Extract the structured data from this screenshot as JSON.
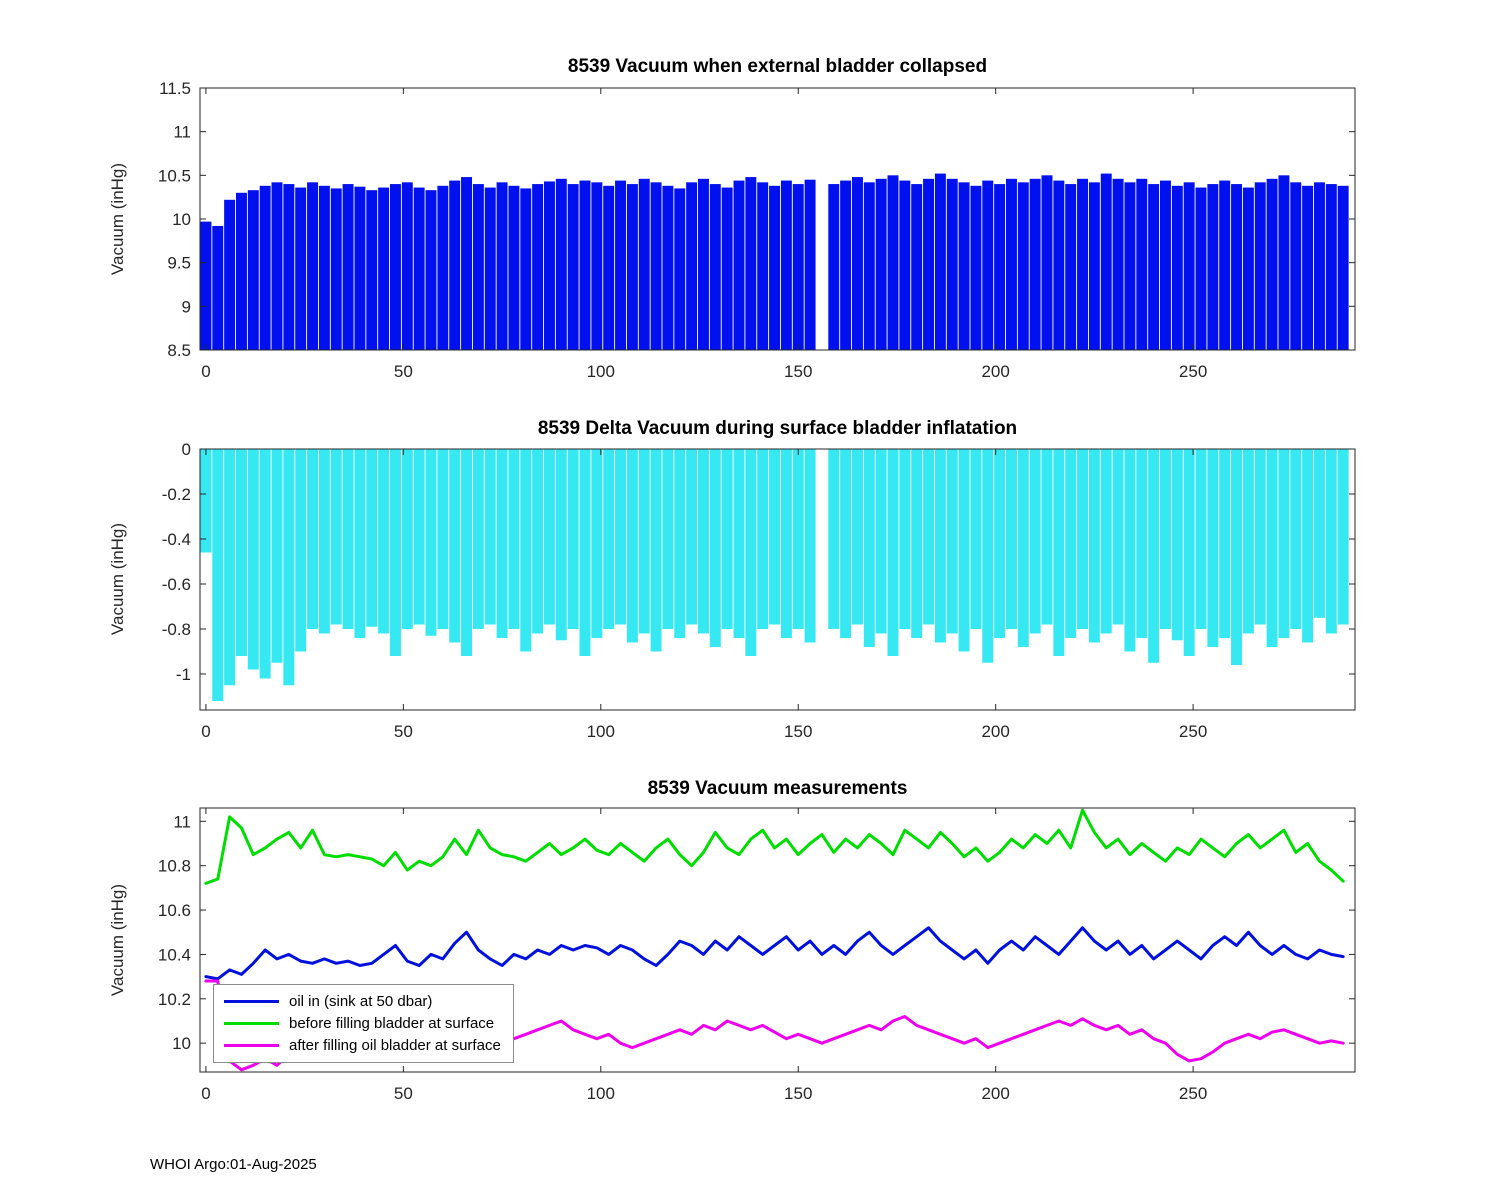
{
  "footer": {
    "text": "WHOI Argo:01-Aug-2025"
  },
  "legend_position": "bottom-left",
  "chart_data": [
    {
      "type": "bar",
      "title": "8539 Vacuum when external bladder collapsed",
      "xlabel": "",
      "ylabel": "Vacuum (inHg)",
      "color": "#0010ee",
      "baseline": 8.5,
      "xlim": [
        -1.5,
        291
      ],
      "ylim": [
        8.5,
        11.5
      ],
      "xticks": [
        0,
        50,
        100,
        150,
        200,
        250
      ],
      "yticks": [
        8.5,
        9,
        9.5,
        10,
        10.5,
        11,
        11.5
      ],
      "grid": false,
      "x_start": 0,
      "x_step": 3,
      "values": [
        9.97,
        9.92,
        10.22,
        10.3,
        10.33,
        10.38,
        10.42,
        10.4,
        10.36,
        10.42,
        10.38,
        10.35,
        10.4,
        10.37,
        10.33,
        10.36,
        10.4,
        10.42,
        10.36,
        10.33,
        10.38,
        10.44,
        10.48,
        10.4,
        10.36,
        10.42,
        10.38,
        10.35,
        10.4,
        10.43,
        10.46,
        10.4,
        10.44,
        10.42,
        10.38,
        10.44,
        10.4,
        10.46,
        10.42,
        10.38,
        10.35,
        10.42,
        10.46,
        10.4,
        10.36,
        10.44,
        10.48,
        10.42,
        10.38,
        10.44,
        10.4,
        10.45,
        null,
        10.4,
        10.44,
        10.48,
        10.42,
        10.46,
        10.5,
        10.44,
        10.4,
        10.46,
        10.52,
        10.46,
        10.42,
        10.38,
        10.44,
        10.4,
        10.46,
        10.42,
        10.46,
        10.5,
        10.44,
        10.4,
        10.46,
        10.42,
        10.52,
        10.46,
        10.42,
        10.46,
        10.4,
        10.44,
        10.38,
        10.42,
        10.36,
        10.4,
        10.44,
        10.4,
        10.36,
        10.42,
        10.46,
        10.5,
        10.42,
        10.38,
        10.42,
        10.4,
        10.38
      ]
    },
    {
      "type": "bar",
      "title": "8539 Delta Vacuum during surface bladder inflatation",
      "xlabel": "",
      "ylabel": "Vacuum (inHg)",
      "color": "#35e8f2",
      "baseline": 0,
      "xlim": [
        -1.5,
        291
      ],
      "ylim": [
        -1.16,
        0
      ],
      "xticks": [
        0,
        50,
        100,
        150,
        200,
        250
      ],
      "yticks": [
        0,
        -0.2,
        -0.4,
        -0.6,
        -0.8,
        -1
      ],
      "grid": false,
      "x_start": 0,
      "x_step": 3,
      "values": [
        -0.46,
        -1.12,
        -1.05,
        -0.92,
        -0.98,
        -1.02,
        -0.95,
        -1.05,
        -0.9,
        -0.8,
        -0.82,
        -0.78,
        -0.8,
        -0.84,
        -0.79,
        -0.82,
        -0.92,
        -0.8,
        -0.78,
        -0.83,
        -0.8,
        -0.86,
        -0.92,
        -0.8,
        -0.78,
        -0.84,
        -0.8,
        -0.9,
        -0.82,
        -0.78,
        -0.85,
        -0.8,
        -0.92,
        -0.84,
        -0.8,
        -0.78,
        -0.86,
        -0.82,
        -0.9,
        -0.8,
        -0.84,
        -0.78,
        -0.82,
        -0.88,
        -0.8,
        -0.84,
        -0.92,
        -0.8,
        -0.78,
        -0.84,
        -0.8,
        -0.86,
        null,
        -0.8,
        -0.84,
        -0.78,
        -0.88,
        -0.82,
        -0.92,
        -0.8,
        -0.84,
        -0.78,
        -0.86,
        -0.82,
        -0.9,
        -0.8,
        -0.95,
        -0.84,
        -0.8,
        -0.88,
        -0.82,
        -0.78,
        -0.92,
        -0.84,
        -0.8,
        -0.86,
        -0.82,
        -0.78,
        -0.9,
        -0.84,
        -0.95,
        -0.8,
        -0.85,
        -0.92,
        -0.8,
        -0.88,
        -0.84,
        -0.96,
        -0.82,
        -0.78,
        -0.88,
        -0.84,
        -0.8,
        -0.86,
        -0.75,
        -0.82,
        -0.78
      ]
    },
    {
      "type": "line",
      "title": "8539 Vacuum measurements",
      "xlabel": "",
      "ylabel": "Vacuum (inHg)",
      "xlim": [
        -1.5,
        291
      ],
      "ylim": [
        9.87,
        11.06
      ],
      "xticks": [
        0,
        50,
        100,
        150,
        200,
        250
      ],
      "yticks": [
        10,
        10.2,
        10.4,
        10.6,
        10.8,
        11
      ],
      "grid": false,
      "x_start": 0,
      "x_step": 3,
      "series": [
        {
          "name": "oil in (sink at 50 dbar)",
          "color": "#0010dd",
          "values": [
            10.3,
            10.29,
            10.33,
            10.31,
            10.36,
            10.42,
            10.38,
            10.4,
            10.37,
            10.36,
            10.38,
            10.36,
            10.37,
            10.35,
            10.36,
            10.4,
            10.44,
            10.37,
            10.35,
            10.4,
            10.38,
            10.45,
            10.5,
            10.42,
            10.38,
            10.35,
            10.4,
            10.38,
            10.42,
            10.4,
            10.44,
            10.42,
            10.44,
            10.43,
            10.4,
            10.44,
            10.42,
            10.38,
            10.35,
            10.4,
            10.46,
            10.44,
            10.4,
            10.46,
            10.42,
            10.48,
            10.44,
            10.4,
            10.44,
            10.48,
            10.42,
            10.46,
            10.4,
            10.44,
            10.4,
            10.46,
            10.5,
            10.44,
            10.4,
            10.44,
            10.48,
            10.52,
            10.46,
            10.42,
            10.38,
            10.42,
            10.36,
            10.42,
            10.46,
            10.42,
            10.48,
            10.44,
            10.4,
            10.46,
            10.52,
            10.46,
            10.42,
            10.46,
            10.4,
            10.44,
            10.38,
            10.42,
            10.46,
            10.42,
            10.38,
            10.44,
            10.48,
            10.44,
            10.5,
            10.44,
            10.4,
            10.44,
            10.4,
            10.38,
            10.42,
            10.4,
            10.39
          ]
        },
        {
          "name": "before filling bladder at surface",
          "color": "#00dd00",
          "values": [
            10.72,
            10.74,
            11.02,
            10.97,
            10.85,
            10.88,
            10.92,
            10.95,
            10.88,
            10.96,
            10.85,
            10.84,
            10.85,
            10.84,
            10.83,
            10.8,
            10.86,
            10.78,
            10.82,
            10.8,
            10.84,
            10.92,
            10.85,
            10.96,
            10.88,
            10.85,
            10.84,
            10.82,
            10.86,
            10.9,
            10.85,
            10.88,
            10.92,
            10.87,
            10.85,
            10.9,
            10.86,
            10.82,
            10.88,
            10.92,
            10.85,
            10.8,
            10.86,
            10.95,
            10.88,
            10.85,
            10.92,
            10.96,
            10.88,
            10.92,
            10.85,
            10.9,
            10.94,
            10.86,
            10.92,
            10.88,
            10.94,
            10.9,
            10.85,
            10.96,
            10.92,
            10.88,
            10.95,
            10.9,
            10.84,
            10.88,
            10.82,
            10.86,
            10.92,
            10.88,
            10.94,
            10.9,
            10.96,
            10.88,
            11.05,
            10.95,
            10.88,
            10.92,
            10.85,
            10.9,
            10.86,
            10.82,
            10.88,
            10.85,
            10.92,
            10.88,
            10.84,
            10.9,
            10.94,
            10.88,
            10.92,
            10.96,
            10.86,
            10.9,
            10.82,
            10.78,
            10.73
          ]
        },
        {
          "name": "after filling oil bladder at surface",
          "color": "#ee00ee",
          "values": [
            10.28,
            10.28,
            9.92,
            9.88,
            9.9,
            9.93,
            9.9,
            9.95,
            9.92,
            9.96,
            9.98,
            10.0,
            10.02,
            9.98,
            10.0,
            10.02,
            10.0,
            10.04,
            10.02,
            10.0,
            10.04,
            10.06,
            10.04,
            10.02,
            10.04,
            10.0,
            10.02,
            10.04,
            10.06,
            10.08,
            10.1,
            10.06,
            10.04,
            10.02,
            10.04,
            10.0,
            9.98,
            10.0,
            10.02,
            10.04,
            10.06,
            10.04,
            10.08,
            10.06,
            10.1,
            10.08,
            10.06,
            10.08,
            10.05,
            10.02,
            10.04,
            10.02,
            10.0,
            10.02,
            10.04,
            10.06,
            10.08,
            10.06,
            10.1,
            10.12,
            10.08,
            10.06,
            10.04,
            10.02,
            10.0,
            10.02,
            9.98,
            10.0,
            10.02,
            10.04,
            10.06,
            10.08,
            10.1,
            10.08,
            10.11,
            10.08,
            10.06,
            10.08,
            10.04,
            10.06,
            10.02,
            10.0,
            9.95,
            9.92,
            9.93,
            9.96,
            10.0,
            10.02,
            10.04,
            10.02,
            10.05,
            10.06,
            10.04,
            10.02,
            10.0,
            10.01,
            10.0
          ]
        }
      ]
    }
  ]
}
